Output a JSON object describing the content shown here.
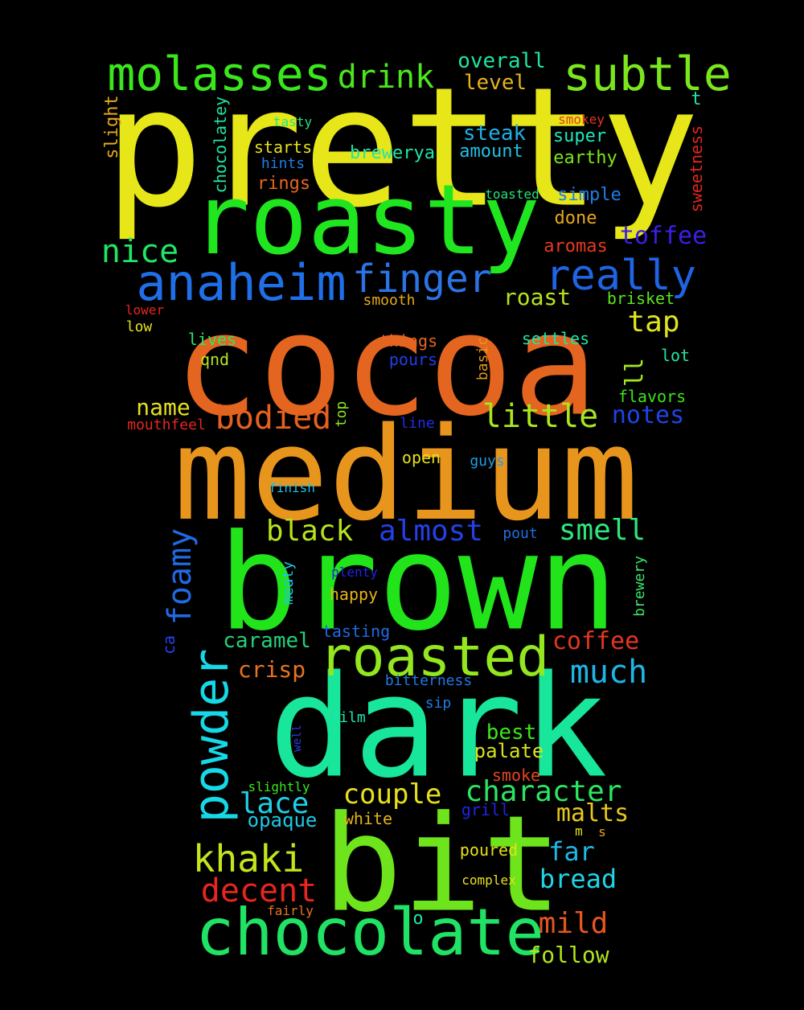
{
  "words": [
    {
      "text": "pretty",
      "color": "#e6e619"
    },
    {
      "text": "cocoa",
      "color": "#e4651f"
    },
    {
      "text": "medium",
      "color": "#e8951e"
    },
    {
      "text": "brown",
      "color": "#21e41b"
    },
    {
      "text": "dark",
      "color": "#18e69a"
    },
    {
      "text": "bit",
      "color": "#6ee41c"
    },
    {
      "text": "roasty",
      "color": "#1fe61f"
    },
    {
      "text": "chocolate",
      "color": "#20e264"
    },
    {
      "text": "roasted",
      "color": "#94e61f"
    },
    {
      "text": "molasses",
      "color": "#3ae61c"
    },
    {
      "text": "subtle",
      "color": "#7be61c"
    },
    {
      "text": "anaheim",
      "color": "#1f6fe8"
    },
    {
      "text": "finger",
      "color": "#2a74e6"
    },
    {
      "text": "really",
      "color": "#1f64e4"
    },
    {
      "text": "powder",
      "color": "#16d8e6"
    },
    {
      "text": "khaki",
      "color": "#c6e41c"
    },
    {
      "text": "little",
      "color": "#a8e61f"
    },
    {
      "text": "bodied",
      "color": "#e5611f"
    },
    {
      "text": "decent",
      "color": "#e8251e"
    },
    {
      "text": "foamy",
      "color": "#1f6ae4"
    },
    {
      "text": "character",
      "color": "#2be663"
    },
    {
      "text": "much",
      "color": "#1fb5e6"
    },
    {
      "text": "drink",
      "color": "#4be61c"
    },
    {
      "text": "nice",
      "color": "#1fe664"
    },
    {
      "text": "almost",
      "color": "#2440e6"
    },
    {
      "text": "black",
      "color": "#b6e41c"
    },
    {
      "text": "smell",
      "color": "#2ee67a"
    },
    {
      "text": "lace",
      "color": "#1fd0e6"
    },
    {
      "text": "couple",
      "color": "#e6e01c"
    },
    {
      "text": "coffee",
      "color": "#e4371f"
    },
    {
      "text": "mild",
      "color": "#e6561f"
    },
    {
      "text": "bread",
      "color": "#1fd6e6"
    },
    {
      "text": "far",
      "color": "#1fb8e6"
    },
    {
      "text": "malts",
      "color": "#e6c81c"
    },
    {
      "text": "tap",
      "color": "#e0e61c"
    },
    {
      "text": "crisp",
      "color": "#e6731f"
    },
    {
      "text": "caramel",
      "color": "#22d27a"
    },
    {
      "text": "toffee",
      "color": "#3b1fe6"
    },
    {
      "text": "steak",
      "color": "#1fb0e6"
    },
    {
      "text": "notes",
      "color": "#1f44e6"
    },
    {
      "text": "roast",
      "color": "#b6e41c"
    },
    {
      "text": "name",
      "color": "#e6e01c"
    },
    {
      "text": "overall",
      "color": "#1fe6a0"
    },
    {
      "text": "level",
      "color": "#e6b41c"
    },
    {
      "text": "follow",
      "color": "#b2e41c"
    },
    {
      "text": "opaque",
      "color": "#1fc8e6"
    },
    {
      "text": "best",
      "color": "#3be61c"
    },
    {
      "text": "palate",
      "color": "#d6e41c"
    },
    {
      "text": "ll",
      "color": "#a4e61f"
    },
    {
      "text": "brewerya",
      "color": "#1fe6aa"
    },
    {
      "text": "starts",
      "color": "#e6e01c"
    },
    {
      "text": "rings",
      "color": "#e6661f"
    },
    {
      "text": "amount",
      "color": "#1fc2e6"
    },
    {
      "text": "super",
      "color": "#1fe6ba"
    },
    {
      "text": "earthy",
      "color": "#7ce61c"
    },
    {
      "text": "simple",
      "color": "#1f7ee6"
    },
    {
      "text": "done",
      "color": "#e6a81c"
    },
    {
      "text": "aromas",
      "color": "#e6391f"
    },
    {
      "text": "brisket",
      "color": "#5ae61c"
    },
    {
      "text": "flavors",
      "color": "#3be61c"
    },
    {
      "text": "lives",
      "color": "#2be666"
    },
    {
      "text": "qnd",
      "color": "#b6e41c"
    },
    {
      "text": "pours",
      "color": "#1f40e6"
    },
    {
      "text": "settles",
      "color": "#1fe6a8"
    },
    {
      "text": "lot",
      "color": "#1fe6a2"
    },
    {
      "text": "open",
      "color": "#e6e01c"
    },
    {
      "text": "smoke",
      "color": "#e6461f"
    },
    {
      "text": "white",
      "color": "#e6b41c"
    },
    {
      "text": "poured",
      "color": "#e6e01c"
    },
    {
      "text": "things",
      "color": "#e6661f"
    },
    {
      "text": "tasting",
      "color": "#1f6ae6"
    },
    {
      "text": "happy",
      "color": "#e6b41c"
    },
    {
      "text": "bitterness",
      "color": "#1f7ae6"
    },
    {
      "text": "film",
      "color": "#1fe6b0"
    },
    {
      "text": "sip",
      "color": "#1f7ce6"
    },
    {
      "text": "line",
      "color": "#1f2ee6"
    },
    {
      "text": "guys",
      "color": "#1f9ee6"
    },
    {
      "text": "pout",
      "color": "#1f70e6"
    },
    {
      "text": "plenty",
      "color": "#1f24e6"
    },
    {
      "text": "finish",
      "color": "#1fc0e6"
    },
    {
      "text": "grill",
      "color": "#1f24e6"
    },
    {
      "text": "complex",
      "color": "#e6e01c"
    },
    {
      "text": "fairly",
      "color": "#e6731f"
    },
    {
      "text": "slightly",
      "color": "#3ae61c"
    },
    {
      "text": "mouthfeel",
      "color": "#e6261f"
    },
    {
      "text": "low",
      "color": "#e6e01c"
    },
    {
      "text": "lower",
      "color": "#e6261f"
    },
    {
      "text": "smooth",
      "color": "#e6a81c"
    },
    {
      "text": "toasted",
      "color": "#1fe67a"
    },
    {
      "text": "smokey",
      "color": "#e6361f"
    },
    {
      "text": "tasty",
      "color": "#1fe67a"
    },
    {
      "text": "hints",
      "color": "#1f7ee6"
    },
    {
      "text": "slight",
      "color": "#e6a81c"
    },
    {
      "text": "chocolatey",
      "color": "#1fe6a0"
    },
    {
      "text": "sweetness",
      "color": "#e6261f"
    },
    {
      "text": "basic",
      "color": "#e6961c"
    },
    {
      "text": "top",
      "color": "#8ae61c"
    },
    {
      "text": "meaty",
      "color": "#1fc6e6"
    },
    {
      "text": "brewery",
      "color": "#3ae66a"
    },
    {
      "text": "ca",
      "color": "#2440e6"
    },
    {
      "text": "well",
      "color": "#2440e6"
    },
    {
      "text": "t",
      "color": "#1fe6a8"
    },
    {
      "text": "m",
      "color": "#e6e01c"
    },
    {
      "text": "s",
      "color": "#e6a81c"
    },
    {
      "text": "o",
      "color": "#1fe6a0"
    }
  ]
}
